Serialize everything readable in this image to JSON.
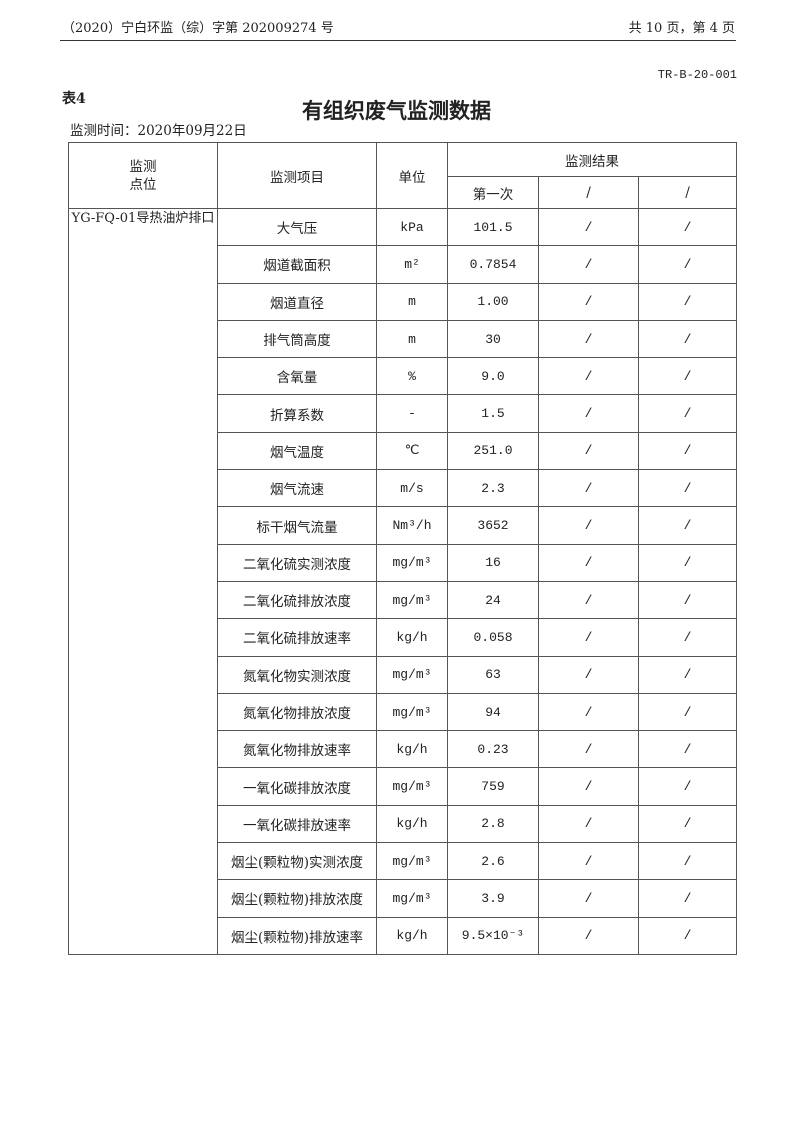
{
  "header": {
    "doc_number": "（2020）宁白环监（综）字第 202009274 号",
    "page_info": "共 10 页，第 4 页",
    "form_code": "TR-B-20-001"
  },
  "table_label": "表4",
  "title": "有组织废气监测数据",
  "monitoring_time": "监测时间：2020年09月22日",
  "table": {
    "headers": {
      "site": "监测\n点位",
      "item": "监测项目",
      "unit": "单位",
      "results": "监测结果",
      "result_cols": [
        "第一次",
        "/",
        "/"
      ]
    },
    "site": "YG-FQ-01导热油炉排口",
    "rows": [
      {
        "item": "大气压",
        "unit": "kPa",
        "values": [
          "101.5",
          "/",
          "/"
        ]
      },
      {
        "item": "烟道截面积",
        "unit": "m²",
        "values": [
          "0.7854",
          "/",
          "/"
        ]
      },
      {
        "item": "烟道直径",
        "unit": "m",
        "values": [
          "1.00",
          "/",
          "/"
        ]
      },
      {
        "item": "排气筒高度",
        "unit": "m",
        "values": [
          "30",
          "/",
          "/"
        ]
      },
      {
        "item": "含氧量",
        "unit": "%",
        "values": [
          "9.0",
          "/",
          "/"
        ]
      },
      {
        "item": "折算系数",
        "unit": "-",
        "values": [
          "1.5",
          "/",
          "/"
        ]
      },
      {
        "item": "烟气温度",
        "unit": "℃",
        "values": [
          "251.0",
          "/",
          "/"
        ]
      },
      {
        "item": "烟气流速",
        "unit": "m/s",
        "values": [
          "2.3",
          "/",
          "/"
        ]
      },
      {
        "item": "标干烟气流量",
        "unit": "Nm³/h",
        "values": [
          "3652",
          "/",
          "/"
        ]
      },
      {
        "item": "二氧化硫实测浓度",
        "unit": "mg/m³",
        "values": [
          "16",
          "/",
          "/"
        ]
      },
      {
        "item": "二氧化硫排放浓度",
        "unit": "mg/m³",
        "values": [
          "24",
          "/",
          "/"
        ]
      },
      {
        "item": "二氧化硫排放速率",
        "unit": "kg/h",
        "values": [
          "0.058",
          "/",
          "/"
        ]
      },
      {
        "item": "氮氧化物实测浓度",
        "unit": "mg/m³",
        "values": [
          "63",
          "/",
          "/"
        ]
      },
      {
        "item": "氮氧化物排放浓度",
        "unit": "mg/m³",
        "values": [
          "94",
          "/",
          "/"
        ]
      },
      {
        "item": "氮氧化物排放速率",
        "unit": "kg/h",
        "values": [
          "0.23",
          "/",
          "/"
        ]
      },
      {
        "item": "一氧化碳排放浓度",
        "unit": "mg/m³",
        "values": [
          "759",
          "/",
          "/"
        ]
      },
      {
        "item": "一氧化碳排放速率",
        "unit": "kg/h",
        "values": [
          "2.8",
          "/",
          "/"
        ]
      },
      {
        "item": "烟尘(颗粒物)实测浓度",
        "unit": "mg/m³",
        "values": [
          "2.6",
          "/",
          "/"
        ]
      },
      {
        "item": "烟尘(颗粒物)排放浓度",
        "unit": "mg/m³",
        "values": [
          "3.9",
          "/",
          "/"
        ]
      },
      {
        "item": "烟尘(颗粒物)排放速率",
        "unit": "kg/h",
        "values": [
          "9.5×10⁻³",
          "/",
          "/"
        ]
      }
    ]
  }
}
